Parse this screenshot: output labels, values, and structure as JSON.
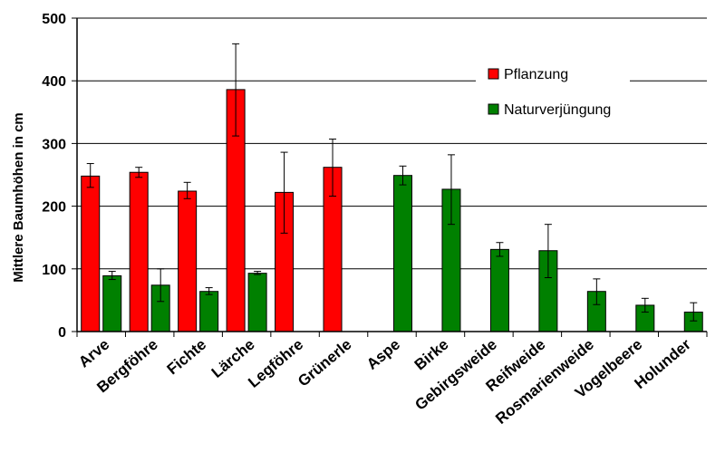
{
  "chart_data": {
    "type": "bar",
    "ylabel": "Mittlere Baumhöhen in cm",
    "xlabel": "",
    "ylim": [
      0,
      500
    ],
    "yticks": [
      0,
      100,
      200,
      300,
      400,
      500
    ],
    "grid": true,
    "legend_position": "top-right",
    "categories": [
      "Arve",
      "Bergföhre",
      "Fichte",
      "Lärche",
      "Legföhre",
      "Grünerle",
      "Aspe",
      "Birke",
      "Gebirgsweide",
      "Reifweide",
      "Rosmarienweide",
      "Vogelbeere",
      "Holunder"
    ],
    "series": [
      {
        "name": "Pflanzung",
        "color": "#ff0000",
        "values": [
          248,
          254,
          224,
          386,
          222,
          262,
          null,
          null,
          null,
          null,
          null,
          null,
          null
        ],
        "err_low": [
          230,
          246,
          212,
          312,
          157,
          216,
          null,
          null,
          null,
          null,
          null,
          null,
          null
        ],
        "err_high": [
          268,
          262,
          238,
          459,
          286,
          307,
          null,
          null,
          null,
          null,
          null,
          null,
          null
        ]
      },
      {
        "name": "Naturverjüngung",
        "color": "#008000",
        "values": [
          89,
          74,
          64,
          93,
          null,
          null,
          249,
          227,
          131,
          129,
          64,
          42,
          31
        ],
        "err_low": [
          83,
          48,
          59,
          91,
          null,
          null,
          234,
          171,
          120,
          86,
          43,
          31,
          17
        ],
        "err_high": [
          96,
          100,
          70,
          96,
          null,
          null,
          264,
          282,
          142,
          171,
          84,
          53,
          46
        ]
      }
    ]
  }
}
